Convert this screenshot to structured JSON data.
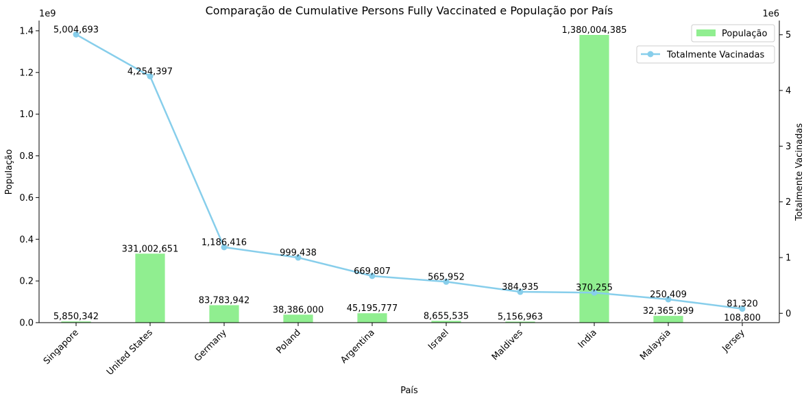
{
  "chart_data": {
    "type": "bar+line",
    "title": "Comparação de Cumulative Persons Fully Vaccinated e População por País",
    "xlabel": "País",
    "ylabel_left": "População",
    "ylabel_right": "Totalmente Vacinadas",
    "left_offset_label": "1e9",
    "right_offset_label": "1e6",
    "categories": [
      "Singapore",
      "United States",
      "Germany",
      "Poland",
      "Argentina",
      "Israel",
      "Maldives",
      "India",
      "Malaysia",
      "Jersey"
    ],
    "left_axis": {
      "ylim": [
        0,
        1449004604
      ],
      "ticks": [
        0,
        200000000,
        400000000,
        600000000,
        800000000,
        1000000000,
        1200000000,
        1400000000
      ],
      "tick_labels": [
        "0.0",
        "0.2",
        "0.4",
        "0.6",
        "0.8",
        "1.0",
        "1.2",
        "1.4"
      ]
    },
    "right_axis": {
      "ylim": [
        -168250,
        5254928
      ],
      "ticks": [
        0,
        1000000,
        2000000,
        3000000,
        4000000,
        5000000
      ],
      "tick_labels": [
        "0",
        "1",
        "2",
        "3",
        "4",
        "5"
      ]
    },
    "series": [
      {
        "name": "População",
        "type": "bar",
        "axis": "left",
        "color": "#90ee90",
        "values": [
          5850342,
          331002651,
          83783942,
          38386000,
          45195777,
          8655535,
          5156963,
          1380004385,
          32365999,
          108800
        ],
        "labels": [
          "5,850,342",
          "331,002,651",
          "83,783,942",
          "38,386,000",
          "45,195,777",
          "8,655,535",
          "5,156,963",
          "1,380,004,385",
          "32,365,999",
          "108,800"
        ]
      },
      {
        "name": "Totalmente Vacinadas",
        "type": "line",
        "axis": "right",
        "color": "#87ceeb",
        "values": [
          5004693,
          4254397,
          1186416,
          999438,
          669807,
          565952,
          384935,
          370255,
          250409,
          81320
        ],
        "labels": [
          "5,004,693",
          "4,254,397",
          "1,186,416",
          "999,438",
          "669,807",
          "565,952",
          "384,935",
          "370,255",
          "250,409",
          "81,320"
        ]
      }
    ],
    "legend": {
      "placement": "top-right"
    }
  }
}
